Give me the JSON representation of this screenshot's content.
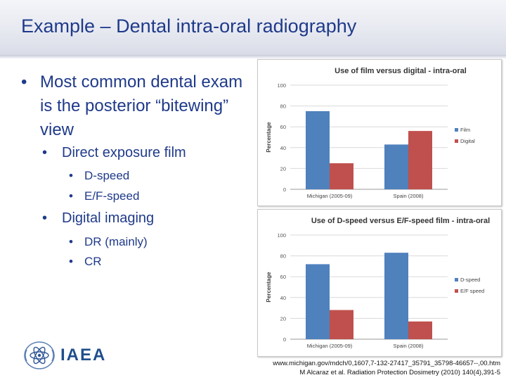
{
  "slide": {
    "title": "Example – Dental intra-oral radiography",
    "bullet_main": "Most common dental exam is the posterior “bitewing” view",
    "sub1": "Direct exposure film",
    "sub1_items": [
      "D-speed",
      "E/F-speed"
    ],
    "sub2": "Digital imaging",
    "sub2_items": [
      "DR (mainly)",
      "CR"
    ],
    "logo_text": "IAEA",
    "refs": [
      "www.michigan.gov/mdch/0,1607,7-132-27417_35791_35798-46657--,00.htm",
      "M Alcaraz et al. Radiation Protection Dosimetry (2010) 140(4),391-5"
    ]
  },
  "colors": {
    "blue": "#4f81bd",
    "red": "#c0504d",
    "title": "#1f3a8a"
  },
  "chart_data": [
    {
      "type": "bar",
      "title": "Use of film versus digital - intra-oral",
      "ylabel": "Percentage",
      "categories": [
        "Michigan (2005-09)",
        "Spain (2008)"
      ],
      "series": [
        {
          "name": "Film",
          "values": [
            75,
            43
          ]
        },
        {
          "name": "Digital",
          "values": [
            25,
            56
          ]
        }
      ],
      "ylim": [
        0,
        100
      ],
      "yticks": [
        0,
        20,
        40,
        60,
        80,
        100
      ],
      "legend": "right",
      "grid": true
    },
    {
      "type": "bar",
      "title": "Use of D-speed versus E/F-speed film - intra-oral",
      "ylabel": "Percentage",
      "categories": [
        "Michigan (2005-09)",
        "Spain (2008)"
      ],
      "series": [
        {
          "name": "D-speed",
          "values": [
            72,
            83
          ]
        },
        {
          "name": "E/F speed",
          "values": [
            28,
            17
          ]
        }
      ],
      "ylim": [
        0,
        100
      ],
      "yticks": [
        0,
        20,
        40,
        60,
        80,
        100
      ],
      "legend": "right",
      "grid": true
    }
  ]
}
